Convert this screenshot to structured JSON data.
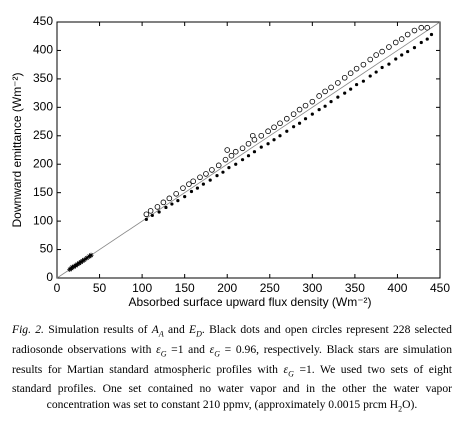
{
  "chart_data": {
    "type": "scatter",
    "xlabel": "Absorbed surface upward flux density (Wm⁻²)",
    "ylabel": "Downward emittance (Wm⁻²)",
    "xlim": [
      0,
      450
    ],
    "ylim": [
      0,
      450
    ],
    "xticks": [
      0,
      50,
      100,
      150,
      200,
      250,
      300,
      350,
      400,
      450
    ],
    "yticks": [
      0,
      50,
      100,
      150,
      200,
      250,
      300,
      350,
      400,
      450
    ],
    "reference_line": {
      "x": [
        0,
        450
      ],
      "y": [
        0,
        450
      ],
      "color": "#888888"
    },
    "series": [
      {
        "marker": "open-circle",
        "color": "#000000",
        "x": [
          105,
          110,
          118,
          125,
          132,
          140,
          148,
          155,
          160,
          168,
          175,
          182,
          190,
          198,
          200,
          205,
          210,
          218,
          225,
          230,
          232,
          240,
          248,
          255,
          262,
          270,
          278,
          285,
          292,
          300,
          308,
          315,
          322,
          330,
          338,
          345,
          352,
          360,
          368,
          375,
          382,
          390,
          398,
          405,
          412,
          420,
          428,
          435
        ],
        "values": [
          112,
          118,
          125,
          133,
          140,
          148,
          158,
          165,
          170,
          177,
          183,
          190,
          198,
          208,
          225,
          215,
          222,
          228,
          236,
          250,
          243,
          250,
          258,
          265,
          272,
          280,
          288,
          296,
          303,
          310,
          320,
          328,
          335,
          343,
          352,
          360,
          368,
          375,
          384,
          392,
          398,
          406,
          414,
          420,
          428,
          435,
          440,
          440
        ]
      },
      {
        "marker": "dot",
        "color": "#000000",
        "x": [
          105,
          112,
          120,
          128,
          135,
          142,
          150,
          158,
          165,
          172,
          180,
          188,
          195,
          202,
          210,
          218,
          225,
          232,
          240,
          248,
          255,
          262,
          270,
          278,
          285,
          292,
          300,
          308,
          315,
          322,
          330,
          338,
          345,
          352,
          360,
          368,
          375,
          382,
          390,
          398,
          405,
          412,
          420,
          428,
          435,
          440
        ],
        "values": [
          103,
          110,
          116,
          124,
          130,
          136,
          143,
          152,
          158,
          165,
          172,
          180,
          186,
          194,
          200,
          208,
          215,
          222,
          230,
          236,
          243,
          250,
          258,
          266,
          272,
          280,
          288,
          296,
          302,
          310,
          318,
          325,
          332,
          340,
          346,
          355,
          362,
          370,
          376,
          385,
          392,
          398,
          405,
          414,
          420,
          428
        ]
      },
      {
        "marker": "star",
        "color": "#000000",
        "x": [
          15,
          17,
          18,
          20,
          22,
          24,
          26,
          28,
          30,
          32,
          35,
          38,
          40
        ],
        "values": [
          15,
          17,
          19,
          20,
          22,
          24,
          26,
          28,
          30,
          32,
          35,
          38,
          40
        ]
      }
    ]
  },
  "caption": [
    {
      "text": "Fig. 2.",
      "style": "italic"
    },
    {
      "text": "  Simulation results of ",
      "style": "plain"
    },
    {
      "text": "A",
      "style": "italic"
    },
    {
      "text": "A",
      "style": "sub"
    },
    {
      "text": " and ",
      "style": "plain"
    },
    {
      "text": "E",
      "style": "italic"
    },
    {
      "text": "D",
      "style": "sub"
    },
    {
      "text": ".  Black dots and open circles represent 228 selected radiosonde observations with ",
      "style": "plain"
    },
    {
      "text": "ε",
      "style": "italic"
    },
    {
      "text": "G",
      "style": "sub"
    },
    {
      "text": " =1 and ",
      "style": "plain"
    },
    {
      "text": "ε",
      "style": "italic"
    },
    {
      "text": "G",
      "style": "sub"
    },
    {
      "text": " = 0.96, respectively. Black stars are simulation results for Martian standard atmospheric profiles with ",
      "style": "plain"
    },
    {
      "text": "ε",
      "style": "italic"
    },
    {
      "text": "G",
      "style": "sub"
    },
    {
      "text": " =1.  We used two sets of eight standard profiles. One set contained no water vapor and in the other the water vapor concentration was set to constant 210 ppmv, (approximately 0.0015 prcm H",
      "style": "plain"
    },
    {
      "text": "2",
      "style": "subplain"
    },
    {
      "text": "O).",
      "style": "plain"
    }
  ]
}
